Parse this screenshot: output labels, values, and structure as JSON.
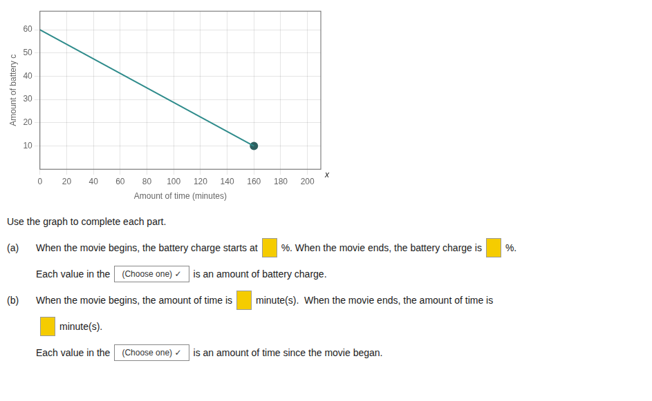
{
  "chart_data": {
    "type": "line",
    "x_label": "Amount of time (minutes)",
    "y_label": "Amount of battery c",
    "series": [
      {
        "type": "line",
        "color": "#2e8b8b",
        "line_style": "solid",
        "x": [
          0,
          160
        ],
        "values": [
          60,
          10
        ]
      },
      {
        "type": "scatter",
        "color": "#2e6060",
        "marker": "circle",
        "x": [
          160
        ],
        "values": [
          10
        ]
      }
    ],
    "xlim": [
      0,
      210
    ],
    "ylim": [
      0,
      68
    ],
    "xticks": [
      0,
      20,
      40,
      60,
      80,
      100,
      120,
      140,
      160,
      180,
      200
    ],
    "yticks": [
      10,
      20,
      30,
      40,
      50,
      60
    ],
    "grid": true,
    "annotations": [
      "x",
      "Use the graph to complete each part.",
      "(a)",
      "When the movie begins, the battery charge starts at",
      "%. When the movie ends, the battery charge is",
      "%.",
      "Each value in the",
      "(Choose one) ✓",
      "is an amount of battery charge.",
      "(b)",
      "When the movie begins, the amount of time is",
      "minute(s).  When the movie ends, the amount of time is",
      "minute(s).",
      "Each value in the",
      "(Choose one) ✓",
      "is an amount of time since the movie began."
    ]
  }
}
